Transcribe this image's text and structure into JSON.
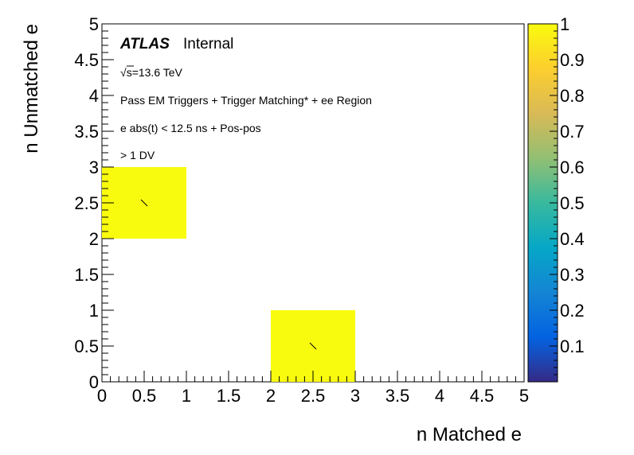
{
  "chart_data": {
    "type": "heatmap",
    "title": "",
    "xlabel": "n Matched e",
    "ylabel": "n Unmatched e",
    "xlim": [
      0,
      5
    ],
    "ylim": [
      0,
      5
    ],
    "x_ticks": [
      "0",
      "0.5",
      "1",
      "1.5",
      "2",
      "2.5",
      "3",
      "3.5",
      "4",
      "4.5",
      "5"
    ],
    "y_ticks": [
      "0",
      "0.5",
      "1",
      "1.5",
      "2",
      "2.5",
      "3",
      "3.5",
      "4",
      "4.5",
      "5"
    ],
    "bins": [
      {
        "x0": 0,
        "x1": 1,
        "y0": 2,
        "y1": 3,
        "value": 1,
        "label": "1"
      },
      {
        "x0": 2,
        "x1": 3,
        "y0": 0,
        "y1": 1,
        "value": 1,
        "label": "1"
      }
    ],
    "colorbar": {
      "min": 0,
      "max": 1,
      "ticks": [
        "0.1",
        "0.2",
        "0.3",
        "0.4",
        "0.5",
        "0.6",
        "0.7",
        "0.8",
        "0.9",
        "1"
      ],
      "palette": "kBird",
      "color_stops": [
        "#352a87",
        "#0363e1",
        "#1485d4",
        "#06a7c6",
        "#38b99e",
        "#92bf73",
        "#d9ba56",
        "#fcce2e",
        "#f9fb0e"
      ]
    },
    "grid": false
  },
  "annotations": {
    "experiment": "ATLAS",
    "status": "Internal",
    "energy_sqrt": "√",
    "energy_rest": "s=13.6 TeV",
    "line1": "Pass EM Triggers + Trigger Matching* + ee Region",
    "line2": "e abs(t) < 12.5 ns + Pos-pos",
    "line3": "> 1 DV"
  }
}
